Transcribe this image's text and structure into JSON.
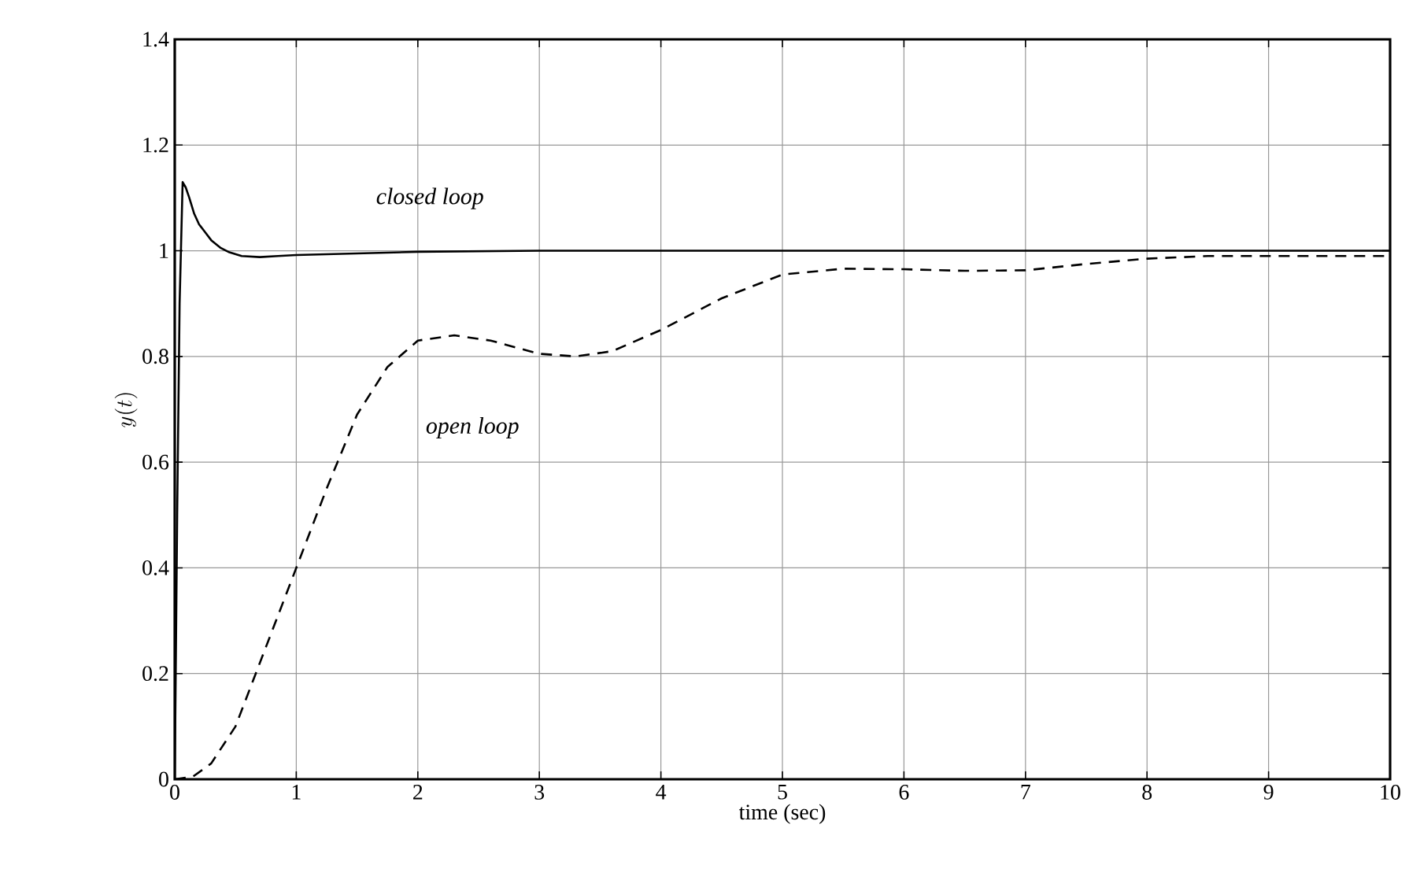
{
  "chart_data": {
    "type": "line",
    "xlabel": "time (sec)",
    "ylabel": "y(t)",
    "xlim": [
      0,
      10
    ],
    "ylim": [
      0,
      1.4
    ],
    "xticks": [
      0,
      1,
      2,
      3,
      4,
      5,
      6,
      7,
      8,
      9,
      10
    ],
    "yticks": [
      0,
      0.2,
      0.4,
      0.6,
      0.8,
      1,
      1.2,
      1.4
    ],
    "grid": true,
    "marker": "none",
    "series": [
      {
        "color": "#000000",
        "line_style": "solid",
        "x": [
          0,
          0.02,
          0.04,
          0.065,
          0.09,
          0.12,
          0.16,
          0.2,
          0.25,
          0.3,
          0.38,
          0.45,
          0.55,
          0.7,
          0.85,
          1,
          1.5,
          2,
          3,
          4,
          5,
          6,
          7,
          8,
          9,
          10
        ],
        "values": [
          0,
          0.5,
          0.9,
          1.13,
          1.12,
          1.1,
          1.07,
          1.05,
          1.035,
          1.02,
          1.005,
          0.997,
          0.99,
          0.988,
          0.99,
          0.992,
          0.995,
          0.998,
          1,
          1,
          1,
          1,
          1,
          1,
          1,
          1
        ]
      },
      {
        "color": "#000000",
        "line_style": "dashed",
        "x": [
          0,
          0.15,
          0.3,
          0.5,
          0.75,
          1,
          1.25,
          1.5,
          1.75,
          2,
          2.3,
          2.6,
          3,
          3.3,
          3.6,
          4,
          4.5,
          5,
          5.5,
          6,
          6.5,
          7,
          7.5,
          8,
          8.5,
          9,
          9.5,
          10
        ],
        "values": [
          0,
          0.005,
          0.03,
          0.1,
          0.25,
          0.4,
          0.55,
          0.69,
          0.78,
          0.83,
          0.84,
          0.83,
          0.805,
          0.8,
          0.81,
          0.85,
          0.91,
          0.955,
          0.966,
          0.965,
          0.962,
          0.963,
          0.975,
          0.985,
          0.99,
          0.99,
          0.99,
          0.99
        ]
      }
    ],
    "annotations": [
      "*closed loop*",
      "*open loop*"
    ]
  }
}
